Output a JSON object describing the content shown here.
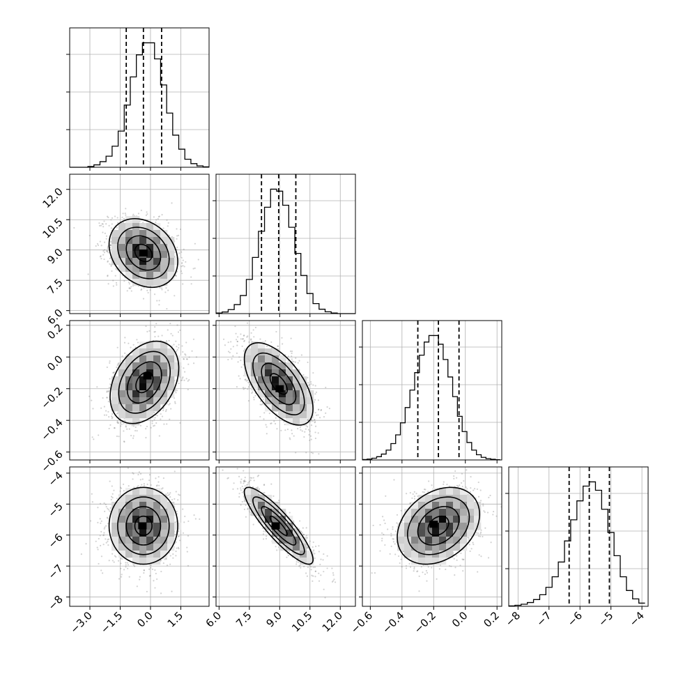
{
  "chart_data": {
    "type": "corner",
    "parameters": [
      {
        "ticks": [
          "−3.0",
          "−1.5",
          "0.0",
          "1.5"
        ],
        "tick_values": [
          -3.0,
          -1.5,
          0.0,
          1.5
        ],
        "range": [
          -4.0,
          2.9
        ]
      },
      {
        "ticks": [
          "6.0",
          "7.5",
          "9.0",
          "10.5",
          "12.0"
        ],
        "tick_values": [
          6.0,
          7.5,
          9.0,
          10.5,
          12.0
        ],
        "range": [
          5.85,
          12.75
        ]
      },
      {
        "ticks": [
          "−0.6",
          "−0.4",
          "−0.2",
          "0.0",
          "0.2"
        ],
        "tick_values": [
          -0.6,
          -0.4,
          -0.2,
          0.0,
          0.2
        ],
        "range": [
          -0.65,
          0.23
        ]
      },
      {
        "ticks": [
          "−8",
          "−7",
          "−6",
          "−5",
          "−4"
        ],
        "tick_values": [
          -8,
          -7,
          -6,
          -5,
          -4
        ],
        "range": [
          -8.3,
          -3.8
        ]
      }
    ],
    "histograms": [
      {
        "bin_edges": [
          -4.0,
          -3.7,
          -3.4,
          -3.1,
          -2.8,
          -2.5,
          -2.2,
          -1.9,
          -1.6,
          -1.3,
          -1.0,
          -0.7,
          -0.4,
          -0.1,
          0.2,
          0.5,
          0.8,
          1.1,
          1.4,
          1.7,
          2.0,
          2.3,
          2.6,
          2.9
        ],
        "counts": [
          0,
          0,
          0,
          0.4,
          1.2,
          2.8,
          5.5,
          10.5,
          18,
          31,
          45,
          56,
          62,
          62,
          54,
          41,
          27,
          16,
          9,
          4,
          1.8,
          0.7,
          0.2
        ],
        "quantiles": [
          -1.2,
          -0.35,
          0.55
        ]
      },
      {
        "bin_edges": [
          5.85,
          6.15,
          6.45,
          6.75,
          7.05,
          7.35,
          7.65,
          7.95,
          8.25,
          8.55,
          8.85,
          9.15,
          9.45,
          9.75,
          10.05,
          10.35,
          10.65,
          10.95,
          11.25,
          11.55,
          11.85,
          12.15,
          12.45,
          12.75
        ],
        "counts": [
          0.3,
          0.8,
          2,
          4.5,
          9,
          17,
          28,
          41,
          53,
          62,
          61,
          54,
          43,
          30,
          19,
          10,
          5,
          2.2,
          0.9,
          0.3,
          0,
          0,
          0
        ],
        "quantiles": [
          8.1,
          8.95,
          9.8
        ]
      },
      {
        "bin_edges": [
          -0.65,
          -0.62,
          -0.59,
          -0.56,
          -0.53,
          -0.5,
          -0.47,
          -0.44,
          -0.41,
          -0.38,
          -0.35,
          -0.32,
          -0.29,
          -0.26,
          -0.23,
          -0.2,
          -0.17,
          -0.14,
          -0.11,
          -0.08,
          -0.05,
          -0.02,
          0.01,
          0.04,
          0.07,
          0.1,
          0.13,
          0.16,
          0.19,
          0.22
        ],
        "counts": [
          0.2,
          0.4,
          0.8,
          1.5,
          2.7,
          4.5,
          7.5,
          11.5,
          17,
          24,
          32,
          40,
          48,
          54,
          57,
          57,
          53,
          46,
          38,
          29,
          20,
          13,
          8,
          4.5,
          2.4,
          1.2,
          0.6,
          0.3,
          0.1
        ],
        "quantiles": [
          -0.3,
          -0.17,
          -0.04
        ]
      },
      {
        "bin_edges": [
          -8.3,
          -8.1,
          -7.9,
          -7.7,
          -7.5,
          -7.3,
          -7.1,
          -6.9,
          -6.7,
          -6.5,
          -6.3,
          -6.1,
          -5.9,
          -5.7,
          -5.5,
          -5.3,
          -5.1,
          -4.9,
          -4.7,
          -4.5,
          -4.3,
          -4.1,
          -3.9
        ],
        "counts": [
          0.2,
          0.5,
          1,
          1.8,
          3.2,
          5.5,
          9,
          14,
          21,
          31,
          41,
          50,
          57,
          59,
          55,
          46,
          35,
          24,
          14,
          7.5,
          3.5,
          1.5
        ],
        "quantiles": [
          -6.35,
          -5.7,
          -5.05
        ]
      }
    ],
    "pairs": [
      {
        "x": 0,
        "y": 1,
        "mean": [
          -0.35,
          8.85
        ],
        "sd": [
          0.85,
          0.85
        ],
        "corr": -0.25,
        "peak": [
          -0.35,
          8.85
        ]
      },
      {
        "x": 0,
        "y": 2,
        "mean": [
          -0.3,
          -0.16
        ],
        "sd": [
          0.85,
          0.13
        ],
        "corr": 0.35,
        "peak": [
          -0.15,
          -0.12
        ]
      },
      {
        "x": 0,
        "y": 3,
        "mean": [
          -0.35,
          -5.7
        ],
        "sd": [
          0.85,
          0.62
        ],
        "corr": 0.0,
        "peak": [
          -0.4,
          -5.7
        ]
      },
      {
        "x": 1,
        "y": 2,
        "mean": [
          8.95,
          -0.17
        ],
        "sd": [
          0.85,
          0.13
        ],
        "corr": -0.6,
        "peak": [
          9.0,
          -0.2
        ]
      },
      {
        "x": 1,
        "y": 3,
        "mean": [
          8.95,
          -5.7
        ],
        "sd": [
          0.85,
          0.62
        ],
        "corr": -0.88,
        "peak": [
          8.8,
          -5.7
        ]
      },
      {
        "x": 2,
        "y": 3,
        "mean": [
          -0.17,
          -5.7
        ],
        "sd": [
          0.13,
          0.62
        ],
        "corr": 0.3,
        "peak": [
          -0.2,
          -5.65
        ]
      }
    ],
    "contour_sigma_levels": [
      0.5,
      1.0,
      1.5,
      2.0
    ],
    "grid": true,
    "colors": {
      "scatter": "#7f7f7f",
      "density_dark": "#000000",
      "line": "#000000",
      "grid": "#b0b0b0"
    }
  }
}
